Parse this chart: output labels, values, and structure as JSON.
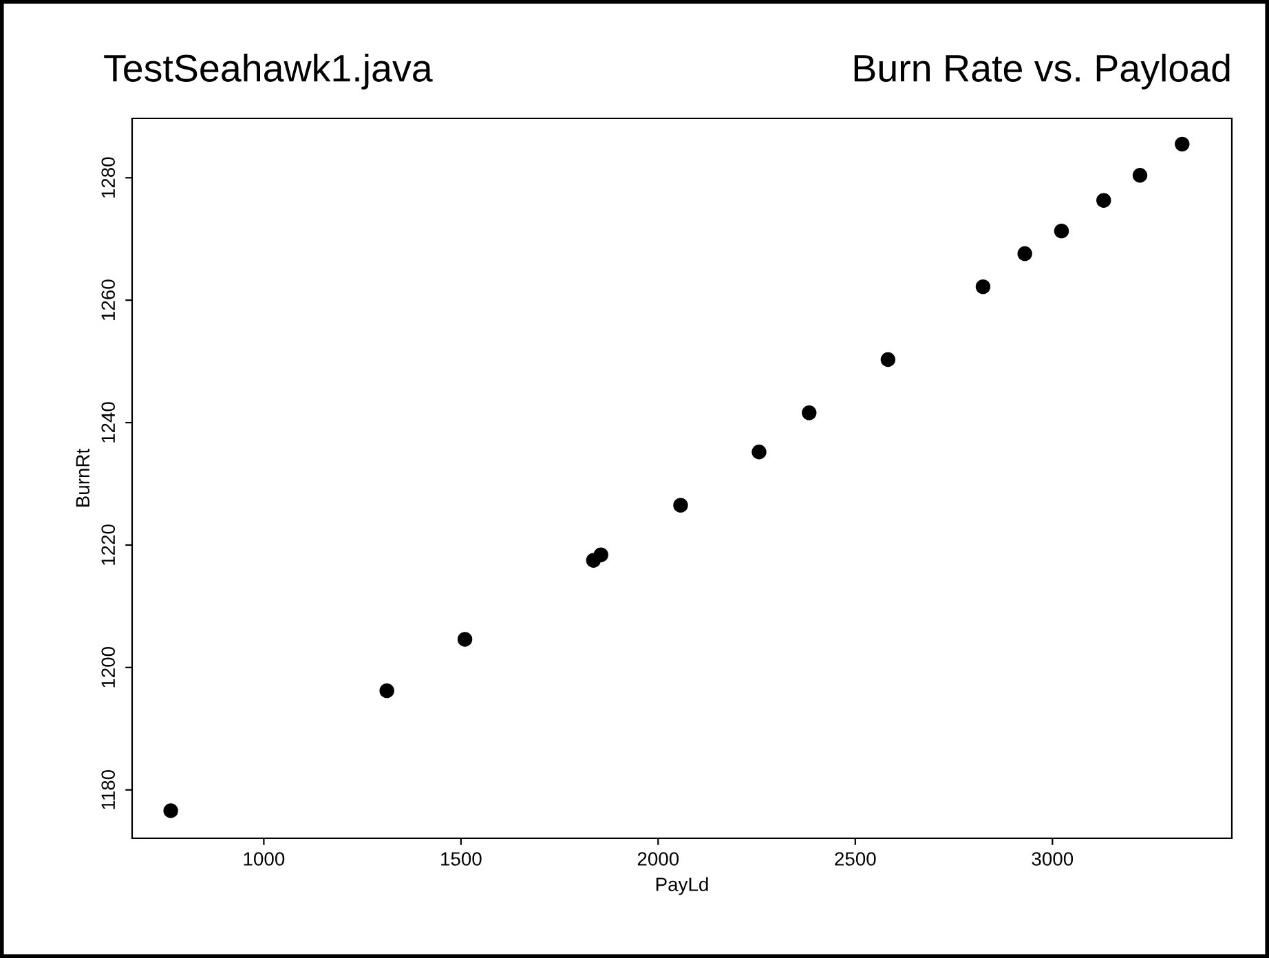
{
  "chart_data": {
    "type": "scatter",
    "title": "Burn Rate vs. Payload",
    "subtitle": "TestSeahawk1.java",
    "xlabel": "PayLd",
    "ylabel": "BurnRt",
    "x": [
      764,
      1312,
      1510,
      1836,
      1855,
      2057,
      2256,
      2383,
      2583,
      2824,
      2930,
      3023,
      3130,
      3222,
      3329
    ],
    "series": [
      {
        "color": "#000000",
        "values": [
          1176.6,
          1196.2,
          1204.6,
          1217.5,
          1218.4,
          1226.5,
          1235.2,
          1241.6,
          1250.3,
          1262.2,
          1267.6,
          1271.3,
          1276.3,
          1280.4,
          1285.5
        ]
      }
    ],
    "xlim": [
      666,
      3455
    ],
    "ylim": [
      1172.1,
      1289.7
    ],
    "xticks": [
      1000,
      1500,
      2000,
      2500,
      3000
    ],
    "yticks": [
      1180,
      1200,
      1220,
      1240,
      1260,
      1280
    ],
    "grid": false,
    "legend": false,
    "marker": "circle"
  }
}
